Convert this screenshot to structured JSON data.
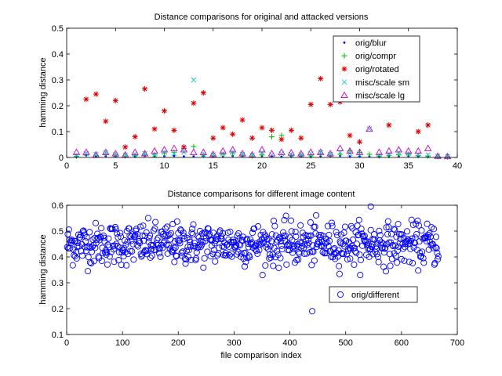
{
  "chart_data": [
    {
      "type": "scatter",
      "title": "Distance comparisons for original and attacked versions",
      "xlabel": "",
      "ylabel": "hamming distance",
      "xlim": [
        0,
        40
      ],
      "ylim": [
        0,
        0.5
      ],
      "xticks": [
        0,
        5,
        10,
        15,
        20,
        25,
        30,
        35,
        40
      ],
      "yticks": [
        0,
        0.1,
        0.2,
        0.3,
        0.4,
        0.5
      ],
      "xtick_labels": [
        "0",
        "5",
        "10",
        "15",
        "20",
        "25",
        "30",
        "35",
        "40"
      ],
      "ytick_labels": [
        "0",
        "0.1",
        "0.2",
        "0.3",
        "0.4",
        "0.5"
      ],
      "grid": false,
      "legend": "top-right",
      "series": [
        {
          "name": "orig/blur",
          "marker": "dot",
          "color": "#0000ff",
          "x": [
            1,
            2,
            3,
            4,
            5,
            6,
            7,
            8,
            9,
            10,
            11,
            12,
            13,
            14,
            15,
            16,
            17,
            18,
            19,
            20,
            21,
            22,
            23,
            24,
            25,
            26,
            27,
            28,
            29,
            30,
            31,
            32,
            33,
            34,
            35,
            36,
            37,
            38,
            39
          ],
          "y": [
            0.003,
            0.008,
            0.004,
            0.005,
            0.003,
            0.003,
            0.004,
            0.006,
            0.004,
            0.005,
            0.006,
            0.004,
            0.004,
            0.005,
            0.004,
            0.003,
            0.006,
            0.004,
            0.003,
            0.005,
            0.004,
            0.003,
            0.005,
            0.004,
            0.003,
            0.004,
            0.005,
            0.006,
            0.004,
            0.005,
            0.004,
            0.003,
            0.005,
            0.004,
            0.005,
            0.004,
            0.003,
            0.002,
            0.002
          ]
        },
        {
          "name": "orig/compr",
          "marker": "plus",
          "color": "#00bb00",
          "x": [
            1,
            2,
            3,
            4,
            5,
            6,
            7,
            8,
            9,
            10,
            11,
            12,
            13,
            14,
            15,
            16,
            17,
            18,
            19,
            20,
            21,
            22,
            23,
            24,
            25,
            26,
            27,
            28,
            29,
            30,
            31,
            32,
            33,
            34,
            35,
            36,
            37,
            38,
            39
          ],
          "y": [
            0.005,
            0.012,
            0.008,
            0.015,
            0.01,
            0.006,
            0.008,
            0.012,
            0.01,
            0.015,
            0.02,
            0.035,
            0.042,
            0.01,
            0.008,
            0.012,
            0.015,
            0.01,
            0.006,
            0.01,
            0.08,
            0.085,
            0.008,
            0.01,
            0.006,
            0.015,
            0.01,
            0.012,
            0.025,
            0.02,
            0.012,
            0.006,
            0.008,
            0.01,
            0.012,
            0.008,
            0.006,
            0.003,
            0.002
          ]
        },
        {
          "name": "orig/rotated",
          "marker": "star",
          "color": "#dd0000",
          "x": [
            2,
            3,
            4,
            5,
            6,
            7,
            8,
            9,
            10,
            11,
            12,
            13,
            14,
            15,
            16,
            17,
            18,
            19,
            20,
            21,
            22,
            23,
            24,
            25,
            26,
            27,
            28,
            29,
            30,
            33,
            36,
            37
          ],
          "y": [
            0.225,
            0.245,
            0.14,
            0.22,
            0.04,
            0.08,
            0.265,
            0.11,
            0.18,
            0.105,
            0.04,
            0.21,
            0.25,
            0.075,
            0.115,
            0.09,
            0.145,
            0.075,
            0.115,
            0.105,
            0.07,
            0.105,
            0.075,
            0.205,
            0.305,
            0.205,
            0.215,
            0.085,
            0.06,
            0.125,
            0.1,
            0.125
          ]
        },
        {
          "name": "misc/scale sm",
          "marker": "x",
          "color": "#22cccc",
          "x": [
            1,
            2,
            3,
            4,
            5,
            6,
            7,
            8,
            9,
            10,
            11,
            12,
            13,
            14,
            15,
            16,
            17,
            18,
            19,
            20,
            21,
            22,
            23,
            24,
            25,
            26,
            27,
            28,
            29,
            30,
            31,
            32,
            33,
            34,
            35,
            36,
            37,
            38,
            39
          ],
          "y": [
            0.01,
            0.015,
            0.012,
            0.018,
            0.01,
            0.008,
            0.012,
            0.015,
            0.01,
            0.02,
            0.015,
            0.02,
            0.3,
            0.012,
            0.01,
            0.015,
            0.02,
            0.012,
            0.008,
            0.02,
            0.01,
            0.015,
            0.012,
            0.01,
            0.015,
            0.02,
            0.012,
            0.02,
            0.015,
            0.01,
            0.11,
            0.01,
            0.015,
            0.02,
            0.015,
            0.012,
            0.01,
            0.005,
            0.004
          ]
        },
        {
          "name": "misc/scale lg",
          "marker": "triangle",
          "color": "#cc00cc",
          "x": [
            1,
            2,
            3,
            4,
            5,
            6,
            7,
            8,
            9,
            10,
            11,
            12,
            13,
            14,
            15,
            16,
            17,
            18,
            19,
            20,
            21,
            22,
            23,
            24,
            25,
            26,
            27,
            28,
            29,
            30,
            31,
            32,
            33,
            34,
            35,
            36,
            37,
            38,
            39
          ],
          "y": [
            0.02,
            0.02,
            0.01,
            0.02,
            0.015,
            0.01,
            0.02,
            0.015,
            0.025,
            0.03,
            0.035,
            0.03,
            0.02,
            0.02,
            0.012,
            0.025,
            0.03,
            0.015,
            0.01,
            0.03,
            0.015,
            0.02,
            0.018,
            0.015,
            0.02,
            0.02,
            0.015,
            0.035,
            0.025,
            0.02,
            0.11,
            0.02,
            0.025,
            0.03,
            0.025,
            0.025,
            0.035,
            0.005,
            0.004
          ]
        }
      ]
    },
    {
      "type": "scatter",
      "title": "Distance comparisons for different image content",
      "xlabel": "file comparison index",
      "ylabel": "hamming distance",
      "xlim": [
        0,
        700
      ],
      "ylim": [
        0.1,
        0.6
      ],
      "xticks": [
        0,
        100,
        200,
        300,
        400,
        500,
        600,
        700
      ],
      "yticks": [
        0.1,
        0.2,
        0.3,
        0.4,
        0.5,
        0.6
      ],
      "xtick_labels": [
        "0",
        "100",
        "200",
        "300",
        "400",
        "500",
        "600",
        "700"
      ],
      "ytick_labels": [
        "0.1",
        "0.2",
        "0.3",
        "0.4",
        "0.5",
        "0.6"
      ],
      "grid": false,
      "legend": "lower-right",
      "series": [
        {
          "name": "orig/different",
          "marker": "circle",
          "color": "#0000ff",
          "count": 666,
          "mean": 0.45,
          "spread": 0.04,
          "min_point": [
            440,
            0.19
          ],
          "max_point": [
            545,
            0.595
          ]
        }
      ]
    }
  ]
}
